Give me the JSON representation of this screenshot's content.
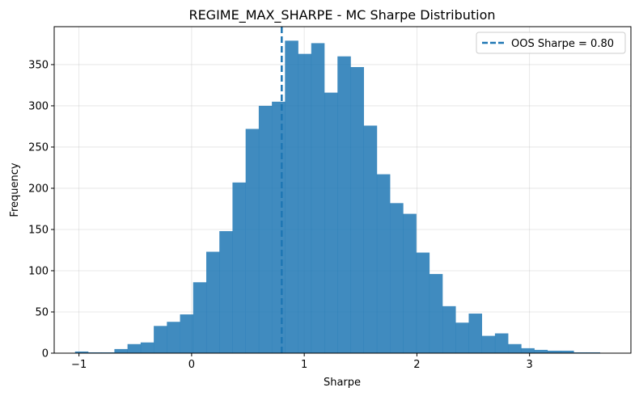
{
  "chart_data": {
    "type": "bar",
    "title": "REGIME_MAX_SHARPE - MC Sharpe Distribution",
    "xlabel": "Sharpe",
    "ylabel": "Frequency",
    "xlim": [
      -1.22,
      3.9
    ],
    "ylim": [
      0,
      396
    ],
    "xticks": [
      -1,
      0,
      1,
      2,
      3
    ],
    "xtick_labels": [
      "−1",
      "0",
      "1",
      "2",
      "3"
    ],
    "yticks": [
      0,
      50,
      100,
      150,
      200,
      250,
      300,
      350
    ],
    "ytick_labels": [
      "0",
      "50",
      "100",
      "150",
      "200",
      "250",
      "300",
      "350"
    ],
    "grid": true,
    "legend_position": "top-right",
    "bar_color": "#1f77b4",
    "bin_start": -1.035,
    "bin_width": 0.1165,
    "values": [
      2,
      1,
      1,
      5,
      11,
      13,
      33,
      38,
      47,
      86,
      123,
      148,
      207,
      272,
      300,
      305,
      379,
      363,
      376,
      316,
      360,
      347,
      276,
      217,
      182,
      169,
      122,
      96,
      57,
      37,
      48,
      21,
      24,
      11,
      6,
      4,
      3,
      3,
      1,
      1
    ],
    "reference_line": {
      "x": 0.8,
      "label": "OOS Sharpe = 0.80",
      "color": "#1f77b4",
      "style": "dashed"
    }
  }
}
